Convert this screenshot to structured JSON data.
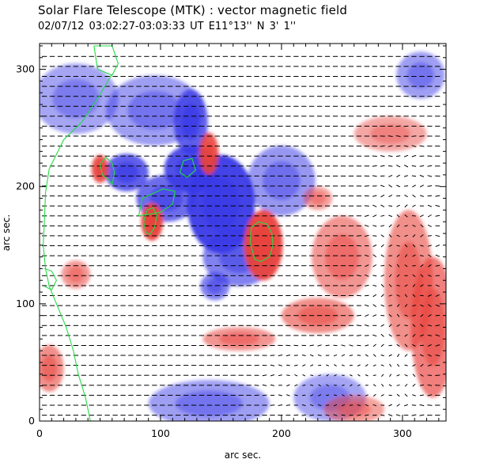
{
  "header": {
    "title": "Solar Flare Telescope (MTK) : vector magnetic field",
    "subtitle": "02/07/12  03:02:27-03:03:33 UT     E11°13''  N 3' 1''"
  },
  "colors": {
    "positive_polarity": "#e8423c",
    "negative_polarity": "#3a3ae6",
    "contour": "#22dd44",
    "vector": "#000000",
    "background": "#ffffff"
  },
  "chart_data": {
    "type": "heatmap",
    "description_fields": "line-of-sight field map with transverse field vectors and contours",
    "xlabel": "arc sec.",
    "ylabel": "arc sec.",
    "xlim": [
      0,
      336
    ],
    "ylim": [
      0,
      322
    ],
    "x_ticks": [
      0,
      100,
      200,
      300
    ],
    "y_ticks": [
      0,
      100,
      200,
      300
    ],
    "blobs": [
      {
        "polarity": "negative",
        "cx": 150,
        "cy": 185,
        "rx": 28,
        "ry": 42,
        "strength": 1.0
      },
      {
        "polarity": "negative",
        "cx": 125,
        "cy": 215,
        "rx": 22,
        "ry": 20,
        "strength": 0.9
      },
      {
        "polarity": "negative",
        "cx": 125,
        "cy": 255,
        "rx": 14,
        "ry": 28,
        "strength": 0.8
      },
      {
        "polarity": "negative",
        "cx": 72,
        "cy": 212,
        "rx": 18,
        "ry": 16,
        "strength": 0.8
      },
      {
        "polarity": "negative",
        "cx": 105,
        "cy": 190,
        "rx": 25,
        "ry": 20,
        "strength": 0.7
      },
      {
        "polarity": "negative",
        "cx": 165,
        "cy": 140,
        "rx": 30,
        "ry": 25,
        "strength": 0.55
      },
      {
        "polarity": "negative",
        "cx": 200,
        "cy": 205,
        "rx": 28,
        "ry": 30,
        "strength": 0.4
      },
      {
        "polarity": "negative",
        "cx": 95,
        "cy": 265,
        "rx": 40,
        "ry": 30,
        "strength": 0.35
      },
      {
        "polarity": "negative",
        "cx": 30,
        "cy": 275,
        "rx": 35,
        "ry": 30,
        "strength": 0.3
      },
      {
        "polarity": "negative",
        "cx": 140,
        "cy": 15,
        "rx": 50,
        "ry": 20,
        "strength": 0.35
      },
      {
        "polarity": "negative",
        "cx": 240,
        "cy": 20,
        "rx": 30,
        "ry": 20,
        "strength": 0.3
      },
      {
        "polarity": "negative",
        "cx": 315,
        "cy": 295,
        "rx": 20,
        "ry": 20,
        "strength": 0.35
      },
      {
        "polarity": "negative",
        "cx": 145,
        "cy": 115,
        "rx": 12,
        "ry": 12,
        "strength": 0.55
      },
      {
        "polarity": "positive",
        "cx": 185,
        "cy": 150,
        "rx": 16,
        "ry": 30,
        "strength": 1.0
      },
      {
        "polarity": "positive",
        "cx": 93,
        "cy": 170,
        "rx": 9,
        "ry": 16,
        "strength": 1.0
      },
      {
        "polarity": "positive",
        "cx": 140,
        "cy": 228,
        "rx": 8,
        "ry": 18,
        "strength": 0.9
      },
      {
        "polarity": "positive",
        "cx": 50,
        "cy": 215,
        "rx": 7,
        "ry": 12,
        "strength": 0.9
      },
      {
        "polarity": "positive",
        "cx": 230,
        "cy": 90,
        "rx": 30,
        "ry": 15,
        "strength": 0.5
      },
      {
        "polarity": "positive",
        "cx": 165,
        "cy": 70,
        "rx": 30,
        "ry": 10,
        "strength": 0.45
      },
      {
        "polarity": "positive",
        "cx": 250,
        "cy": 140,
        "rx": 25,
        "ry": 35,
        "strength": 0.45
      },
      {
        "polarity": "positive",
        "cx": 305,
        "cy": 120,
        "rx": 20,
        "ry": 60,
        "strength": 0.5
      },
      {
        "polarity": "positive",
        "cx": 325,
        "cy": 80,
        "rx": 18,
        "ry": 60,
        "strength": 0.6
      },
      {
        "polarity": "positive",
        "cx": 230,
        "cy": 190,
        "rx": 12,
        "ry": 10,
        "strength": 0.35
      },
      {
        "polarity": "positive",
        "cx": 290,
        "cy": 245,
        "rx": 30,
        "ry": 15,
        "strength": 0.3
      },
      {
        "polarity": "positive",
        "cx": 8,
        "cy": 45,
        "rx": 12,
        "ry": 20,
        "strength": 0.5
      },
      {
        "polarity": "positive",
        "cx": 30,
        "cy": 125,
        "rx": 12,
        "ry": 12,
        "strength": 0.4
      },
      {
        "polarity": "positive",
        "cx": 260,
        "cy": 10,
        "rx": 25,
        "ry": 12,
        "strength": 0.35
      }
    ],
    "contours": [
      [
        [
          57,
          206
        ],
        [
          60,
          202
        ],
        [
          62,
          212
        ],
        [
          60,
          220
        ],
        [
          55,
          225
        ],
        [
          50,
          219
        ],
        [
          52,
          210
        ],
        [
          57,
          206
        ]
      ],
      [
        [
          88,
          161
        ],
        [
          91,
          159
        ],
        [
          95,
          165
        ],
        [
          97,
          175
        ],
        [
          94,
          182
        ],
        [
          89,
          180
        ],
        [
          86,
          170
        ],
        [
          88,
          161
        ]
      ],
      [
        [
          178,
          138
        ],
        [
          183,
          136
        ],
        [
          190,
          140
        ],
        [
          193,
          150
        ],
        [
          192,
          160
        ],
        [
          188,
          168
        ],
        [
          181,
          170
        ],
        [
          175,
          165
        ],
        [
          174,
          152
        ],
        [
          178,
          138
        ]
      ],
      [
        [
          82,
          175
        ],
        [
          85,
          190
        ],
        [
          102,
          198
        ],
        [
          112,
          196
        ],
        [
          110,
          185
        ],
        [
          100,
          178
        ],
        [
          82,
          175
        ]
      ],
      [
        [
          116,
          212
        ],
        [
          119,
          222
        ],
        [
          126,
          224
        ],
        [
          129,
          214
        ],
        [
          122,
          208
        ],
        [
          116,
          212
        ]
      ],
      [
        [
          45,
          320
        ],
        [
          48,
          300
        ],
        [
          60,
          295
        ],
        [
          65,
          305
        ],
        [
          60,
          320
        ],
        [
          45,
          320
        ]
      ],
      [
        [
          60,
          296
        ],
        [
          48,
          275
        ],
        [
          35,
          255
        ],
        [
          20,
          240
        ],
        [
          8,
          215
        ],
        [
          5,
          195
        ],
        [
          4,
          170
        ],
        [
          3,
          150
        ],
        [
          5,
          130
        ],
        [
          8,
          115
        ],
        [
          14,
          100
        ],
        [
          22,
          80
        ],
        [
          28,
          60
        ],
        [
          32,
          40
        ],
        [
          38,
          20
        ],
        [
          42,
          0
        ]
      ],
      [
        [
          4,
          130
        ],
        [
          10,
          128
        ],
        [
          14,
          120
        ],
        [
          10,
          112
        ],
        [
          4,
          115
        ]
      ]
    ],
    "vector_field": {
      "dominant_orientation_deg": 180,
      "dominant_strength": 0.9,
      "disturbed_regions": [
        {
          "cx": 300,
          "cy": 120,
          "rx": 40,
          "ry": 140,
          "angle_offset_deg": 55,
          "strength": 0.6
        },
        {
          "cx": 250,
          "cy": 35,
          "rx": 80,
          "ry": 40,
          "angle_offset_deg": 35,
          "strength": 0.5
        }
      ]
    }
  }
}
